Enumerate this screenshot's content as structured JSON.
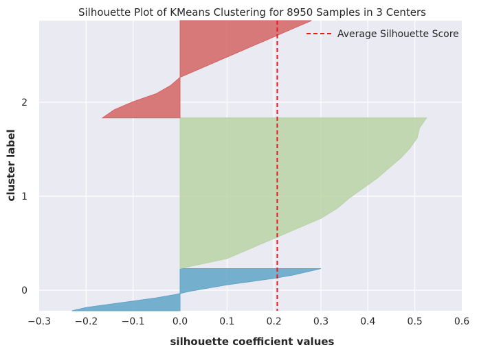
{
  "chart_data": {
    "type": "area",
    "title": "Silhouette Plot of KMeans Clustering for 8950 Samples in 3 Centers",
    "xlabel": "silhouette coefficient values",
    "ylabel": "cluster label",
    "xlim": [
      -0.3,
      0.6
    ],
    "x_ticks": [
      "−0.3",
      "−0.2",
      "−0.1",
      "0.0",
      "0.1",
      "0.2",
      "0.3",
      "0.4",
      "0.5",
      "0.6"
    ],
    "x_tick_values": [
      -0.3,
      -0.2,
      -0.1,
      0.0,
      0.1,
      0.2,
      0.3,
      0.4,
      0.5,
      0.6
    ],
    "y_ticks": [
      "0",
      "1",
      "2"
    ],
    "grid": true,
    "legend_position": "top-right",
    "average_silhouette_score": 0.207,
    "average_label": "Average Silhouette Score",
    "average_color": "#e41a1c",
    "clusters": [
      {
        "label": "0",
        "color": "#5fa4c8",
        "size": 1300,
        "coefficients_min_to_max": [
          -0.23,
          -0.2,
          -0.15,
          -0.1,
          -0.05,
          -0.01,
          0.02,
          0.06,
          0.1,
          0.15,
          0.2,
          0.24,
          0.27,
          0.3
        ]
      },
      {
        "label": "1",
        "color": "#b8d4a6",
        "size": 4650,
        "coefficients_min_to_max": [
          0.0,
          0.1,
          0.15,
          0.2,
          0.25,
          0.3,
          0.335,
          0.36,
          0.39,
          0.42,
          0.445,
          0.47,
          0.49,
          0.505,
          0.51,
          0.525
        ]
      },
      {
        "label": "2",
        "color": "#d46464",
        "size": 3000,
        "coefficients_min_to_max": [
          -0.165,
          -0.14,
          -0.1,
          -0.05,
          -0.02,
          0.0,
          0.04,
          0.08,
          0.12,
          0.16,
          0.2,
          0.24,
          0.28
        ]
      }
    ]
  }
}
